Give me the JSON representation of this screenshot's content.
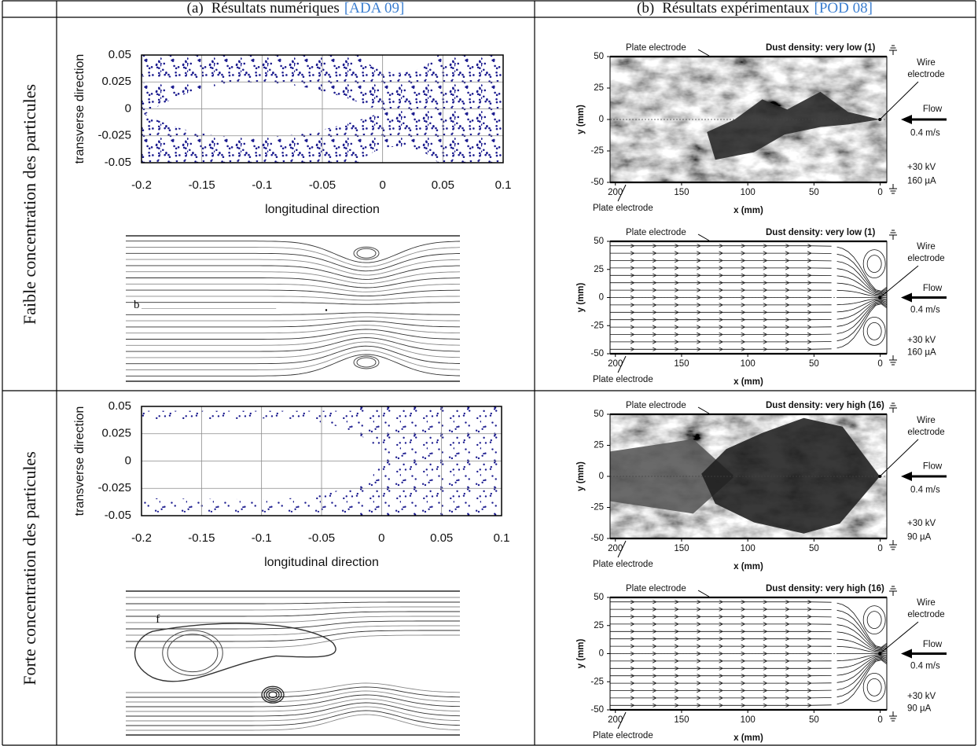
{
  "header": {
    "col_a": {
      "label": "(a)",
      "title": "Résultats numériques",
      "ref": "[ADA 09]"
    },
    "col_b": {
      "label": "(b)",
      "title": "Résultats expérimentaux",
      "ref": "[POD 08]"
    }
  },
  "rows": [
    {
      "label": "Faible concentration des particules",
      "numerical": {
        "scatter": {
          "type": "scatter",
          "xlabel": "longitudinal direction",
          "ylabel": "transverse direction",
          "xlim": [
            -0.2,
            0.1
          ],
          "ylim": [
            -0.05,
            0.05
          ],
          "xticks": [
            -0.2,
            -0.15,
            -0.1,
            -0.05,
            0,
            0.05,
            0.1
          ],
          "yticks": [
            -0.05,
            -0.025,
            0,
            0.025,
            0.05
          ],
          "grid": true,
          "color": "#1c1c8f"
        },
        "streamlines": {
          "marker": "b"
        }
      },
      "experimental": [
        {
          "top_label": "Plate electrode",
          "density": "Dust density:  very low (1)",
          "wire": "Wire electrode",
          "flow": "Flow",
          "speed": "0.4 m/s",
          "voltage": "+30 kV",
          "current": "160 µA",
          "bottom_label": "Plate electrode",
          "xlabel": "x (mm)",
          "ylabel": "y (mm)",
          "xlim": [
            204,
            -5
          ],
          "ylim": [
            -50,
            50
          ],
          "xticks": [
            200,
            150,
            100,
            50,
            0
          ],
          "yticks": [
            -50,
            -25,
            0,
            25,
            50
          ]
        },
        {
          "top_label": "Plate electrode",
          "density": "Dust density:  very low (1)",
          "wire": "Wire electrode",
          "flow": "Flow",
          "speed": "0.4 m/s",
          "voltage": "+30 kV",
          "current": "160 µA",
          "bottom_label": "Plate electrode",
          "xlabel": "x (mm)",
          "ylabel": "y (mm)",
          "xlim": [
            204,
            -5
          ],
          "ylim": [
            -50,
            50
          ],
          "xticks": [
            200,
            150,
            100,
            50,
            0
          ],
          "yticks": [
            -50,
            -25,
            0,
            25,
            50
          ]
        }
      ]
    },
    {
      "label": "Forte concentration des particules",
      "numerical": {
        "scatter": {
          "type": "scatter",
          "xlabel": "longitudinal direction",
          "ylabel": "transverse direction",
          "xlim": [
            -0.2,
            0.1
          ],
          "ylim": [
            -0.05,
            0.05
          ],
          "xticks": [
            -0.2,
            -0.15,
            -0.1,
            -0.05,
            0,
            0.05,
            0.1
          ],
          "yticks": [
            -0.05,
            -0.025,
            0,
            0.025,
            0.05
          ],
          "grid": true,
          "color": "#1c1c8f"
        },
        "streamlines": {
          "marker": "f"
        }
      },
      "experimental": [
        {
          "top_label": "Plate electrode",
          "density": "Dust density:  very high (16)",
          "wire": "Wire electrode",
          "flow": "Flow",
          "speed": "0.4 m/s",
          "voltage": "+30 kV",
          "current": "90 µA",
          "bottom_label": "Plate electrode",
          "xlabel": "x (mm)",
          "ylabel": "y (mm)",
          "xlim": [
            204,
            -5
          ],
          "ylim": [
            -50,
            50
          ],
          "xticks": [
            200,
            150,
            100,
            50,
            0
          ],
          "yticks": [
            -50,
            -25,
            0,
            25,
            50
          ]
        },
        {
          "top_label": "Plate electrode",
          "density": "Dust density:  very high (16)",
          "wire": "Wire electrode",
          "flow": "Flow",
          "speed": "0.4 m/s",
          "voltage": "+30 kV",
          "current": "90 µA",
          "bottom_label": "Plate electrode",
          "xlabel": "x (mm)",
          "ylabel": "y (mm)",
          "xlim": [
            204,
            -5
          ],
          "ylim": [
            -50,
            50
          ],
          "xticks": [
            200,
            150,
            100,
            50,
            0
          ],
          "yticks": [
            -50,
            -25,
            0,
            25,
            50
          ]
        }
      ]
    }
  ]
}
